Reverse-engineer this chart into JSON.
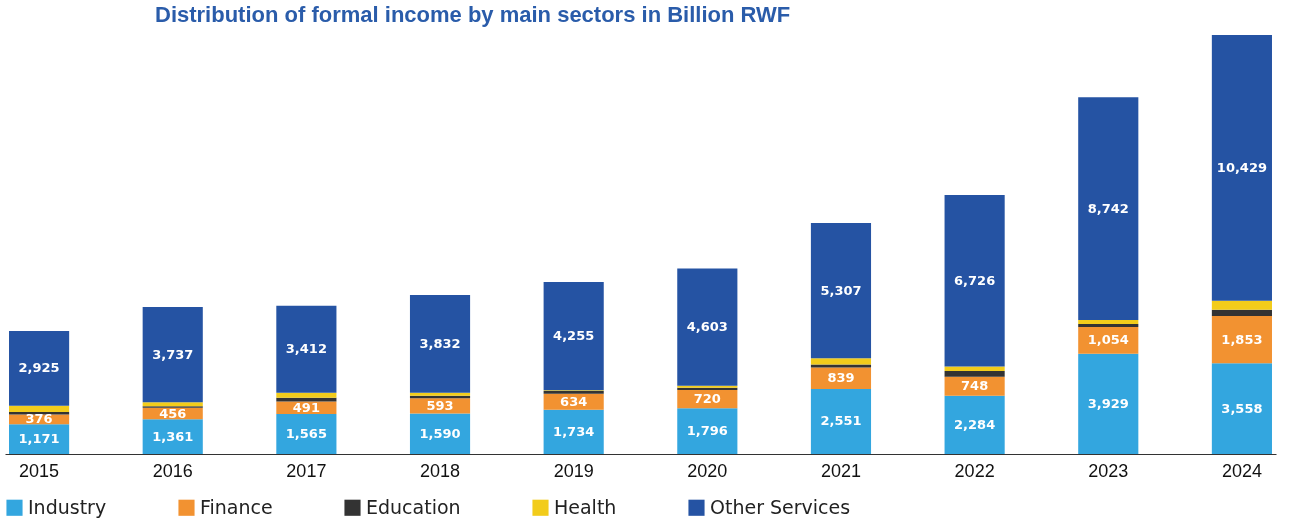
{
  "chart_data": {
    "type": "bar",
    "title": "Distribution of formal  income by main sectors in Billion RWF",
    "stacked": true,
    "legend": "bottom",
    "categories": [
      "2015",
      "2016",
      "2017",
      "2018",
      "2019",
      "2020",
      "2021",
      "2022",
      "2023",
      "2024"
    ],
    "series": [
      {
        "name": "Industry",
        "color": "#33a6df",
        "values": [
          1171,
          1361,
          1565,
          1590,
          1734,
          1796,
          2551,
          2284,
          3929,
          3558
        ],
        "value_labels": [
          "1,171",
          "1,361",
          "1,565",
          "1,590",
          "1,734",
          "1,796",
          "2,551",
          "2,284",
          "3,929",
          "3,558"
        ]
      },
      {
        "name": "Finance",
        "color": "#f29231",
        "values": [
          376,
          456,
          491,
          593,
          634,
          720,
          839,
          748,
          1054,
          1853
        ],
        "value_labels": [
          "376",
          "456",
          "491",
          "593",
          "634",
          "720",
          "839",
          "748",
          "1,054",
          "1,853"
        ]
      },
      {
        "name": "Education",
        "color": "#333333",
        "values": [
          100,
          60,
          150,
          100,
          100,
          80,
          120,
          220,
          120,
          250
        ]
      },
      {
        "name": "Health",
        "color": "#f2cc1b",
        "values": [
          250,
          150,
          200,
          120,
          30,
          80,
          250,
          180,
          150,
          350
        ]
      },
      {
        "name": "Other Services",
        "color": "#2553a3",
        "values": [
          2925,
          3737,
          3412,
          3832,
          4255,
          4603,
          5307,
          6726,
          8742,
          10429
        ],
        "value_labels": [
          "2,925",
          "3,737",
          "3,412",
          "3,832",
          "4,255",
          "4,603",
          "5,307",
          "6,726",
          "8,742",
          "10,429"
        ]
      }
    ]
  }
}
